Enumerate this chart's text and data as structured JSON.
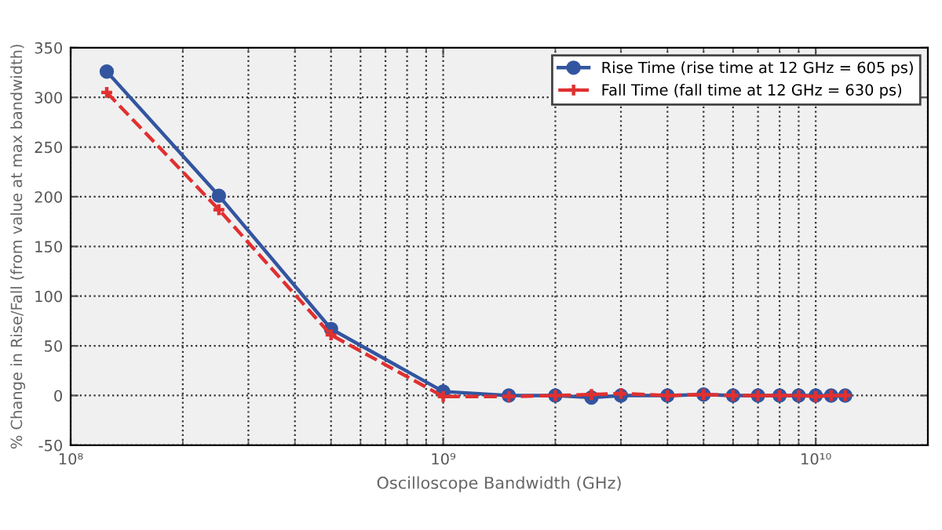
{
  "chart_data": {
    "type": "line",
    "xlabel": "Oscilloscope Bandwidth (GHz)",
    "ylabel": "% Change in Rise/Fall (from value at max bandwidth)",
    "x": [
      125000000,
      250000000,
      500000000,
      1000000000,
      1500000000,
      2000000000,
      2500000000,
      3000000000,
      4000000000,
      5000000000,
      6000000000,
      7000000000,
      8000000000,
      9000000000,
      10000000000,
      11000000000,
      12000000000
    ],
    "series": [
      {
        "name": "Rise Time (rise time at 12 GHz = 605 ps)",
        "color": "#3355a0",
        "marker": "circle",
        "line_style": "solid",
        "values": [
          326,
          201,
          67,
          4,
          0,
          0,
          -2,
          0,
          0,
          1,
          0,
          0,
          0,
          0,
          0,
          0,
          0
        ]
      },
      {
        "name": "Fall Time (fall time at 12 GHz = 630 ps)",
        "color": "#e03030",
        "marker": "cross",
        "line_style": "dashed",
        "values": [
          305,
          187,
          61,
          -1,
          -1,
          0,
          1,
          2,
          0,
          1,
          0,
          0,
          0,
          0,
          -1,
          0,
          0
        ]
      }
    ],
    "log": "x",
    "xlim": [
      100000000,
      20000000000
    ],
    "xticks": [
      {
        "value": 100000000,
        "label": "10⁸"
      },
      {
        "value": 1000000000,
        "label": "10⁹"
      },
      {
        "value": 10000000000,
        "label": "10¹⁰"
      }
    ],
    "ylim": [
      -50,
      350
    ],
    "yticks": [
      -50,
      0,
      50,
      100,
      150,
      200,
      250,
      300,
      350
    ],
    "grid": true,
    "legend": "top right"
  }
}
